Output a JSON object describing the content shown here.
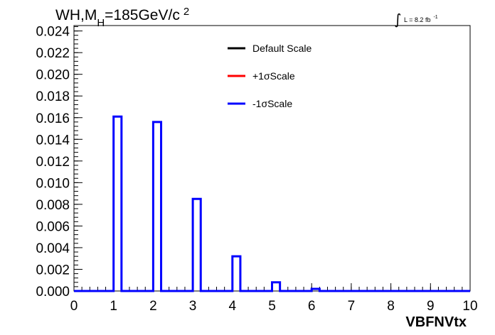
{
  "chart_data": {
    "type": "histogram",
    "title": {
      "main": "WH,M",
      "subscript": "H",
      "rest": "=185GeV/c",
      "superscript": "2"
    },
    "luminosity": {
      "integral": "∫",
      "text": "L = 8.2 fb",
      "superscript": "-1"
    },
    "xlabel": "VBFNVtx",
    "ylabel": "",
    "xlim": [
      0,
      10
    ],
    "ylim": [
      0,
      0.0245
    ],
    "x_ticks": [
      "0",
      "1",
      "2",
      "3",
      "4",
      "5",
      "6",
      "7",
      "8",
      "9",
      "10"
    ],
    "y_ticks": [
      "0.000",
      "0.002",
      "0.004",
      "0.006",
      "0.008",
      "0.010",
      "0.012",
      "0.014",
      "0.016",
      "0.018",
      "0.020",
      "0.022",
      "0.024"
    ],
    "bin_width": 0.2,
    "bins": [
      {
        "x": 1,
        "value": 0.0161
      },
      {
        "x": 2,
        "value": 0.0156
      },
      {
        "x": 3,
        "value": 0.0085
      },
      {
        "x": 4,
        "value": 0.0032
      },
      {
        "x": 5,
        "value": 0.0008
      },
      {
        "x": 6,
        "value": 0.0002
      }
    ],
    "series": [
      {
        "name": "Default Scale",
        "color": "#000000"
      },
      {
        "name": "+1σScale",
        "color": "#ff0000"
      },
      {
        "name": "-1σScale",
        "color": "#0000ff"
      }
    ],
    "drawn_color": "#0000ff",
    "legend_position": "top-right"
  }
}
